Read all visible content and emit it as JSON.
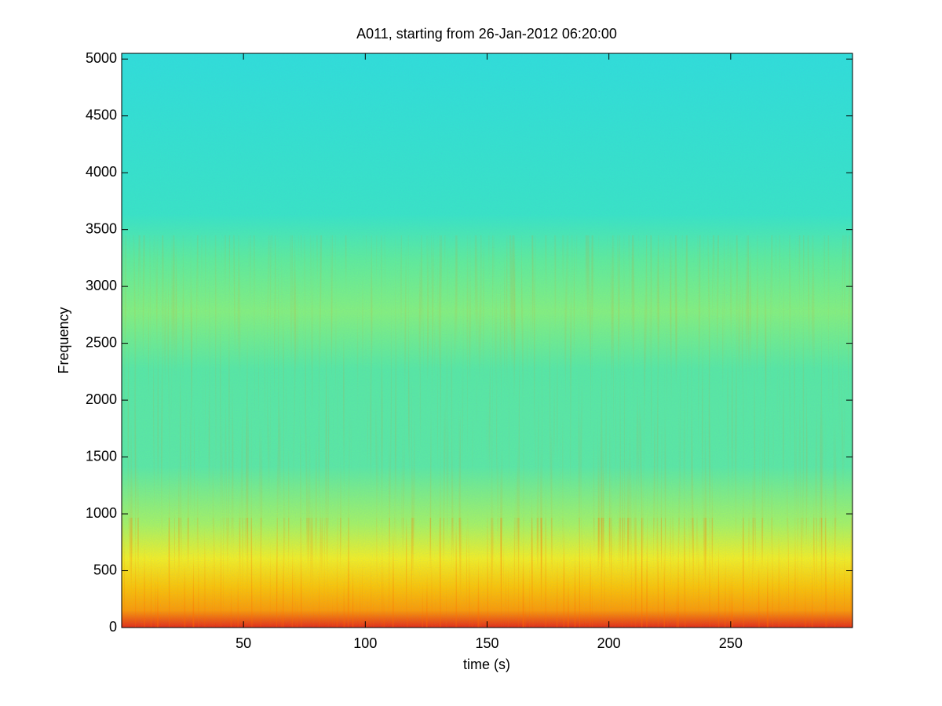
{
  "chart_data": {
    "type": "spectrogram",
    "title": "A011, starting from 26-Jan-2012 06:20:00",
    "x_label": "time (s)",
    "y_label": "Frequency",
    "xlim": [
      0,
      300
    ],
    "ylim": [
      0,
      5050
    ],
    "xticks": [
      50,
      100,
      150,
      200,
      250
    ],
    "yticks": [
      0,
      500,
      1000,
      1500,
      2000,
      2500,
      3000,
      3500,
      4000,
      4500,
      5000
    ]
  }
}
